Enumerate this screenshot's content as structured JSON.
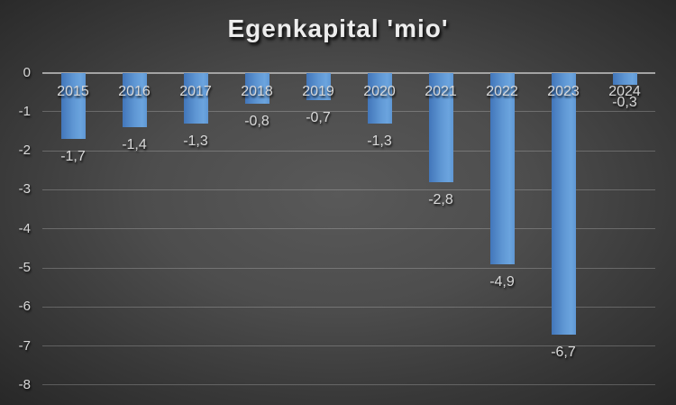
{
  "chart_data": {
    "type": "bar",
    "title": "Egenkapital 'mio'",
    "categories": [
      "2015",
      "2016",
      "2017",
      "2018",
      "2019",
      "2020",
      "2021",
      "2022",
      "2023",
      "2024"
    ],
    "values": [
      -1.7,
      -1.4,
      -1.3,
      -0.8,
      -0.7,
      -1.3,
      -2.8,
      -4.9,
      -6.7,
      -0.3
    ],
    "value_labels": [
      "-1,7",
      "-1,4",
      "-1,3",
      "-0,8",
      "-0,7",
      "-1,3",
      "-2,8",
      "-4,9",
      "-6,7",
      "-0,3"
    ],
    "y_ticks": [
      0,
      -1,
      -2,
      -3,
      -4,
      -5,
      -6,
      -7,
      -8
    ],
    "y_tick_labels": [
      "0",
      "-1",
      "-2",
      "-3",
      "-4",
      "-5",
      "-6",
      "-7",
      "-8"
    ],
    "ylim": [
      0,
      -8
    ],
    "xlabel": "",
    "ylabel": "",
    "grid": true,
    "legend": false,
    "colors": {
      "bar_gradient": [
        "#4276ba",
        "#5f97d4",
        "#6ba4de"
      ],
      "background_center": "#595959",
      "background_edge": "#262626",
      "gridline": "rgba(255,255,255,0.22)",
      "zero_line": "#a3a3a3",
      "label_text": "#d9d9d9",
      "title_text": "#ededed"
    }
  }
}
